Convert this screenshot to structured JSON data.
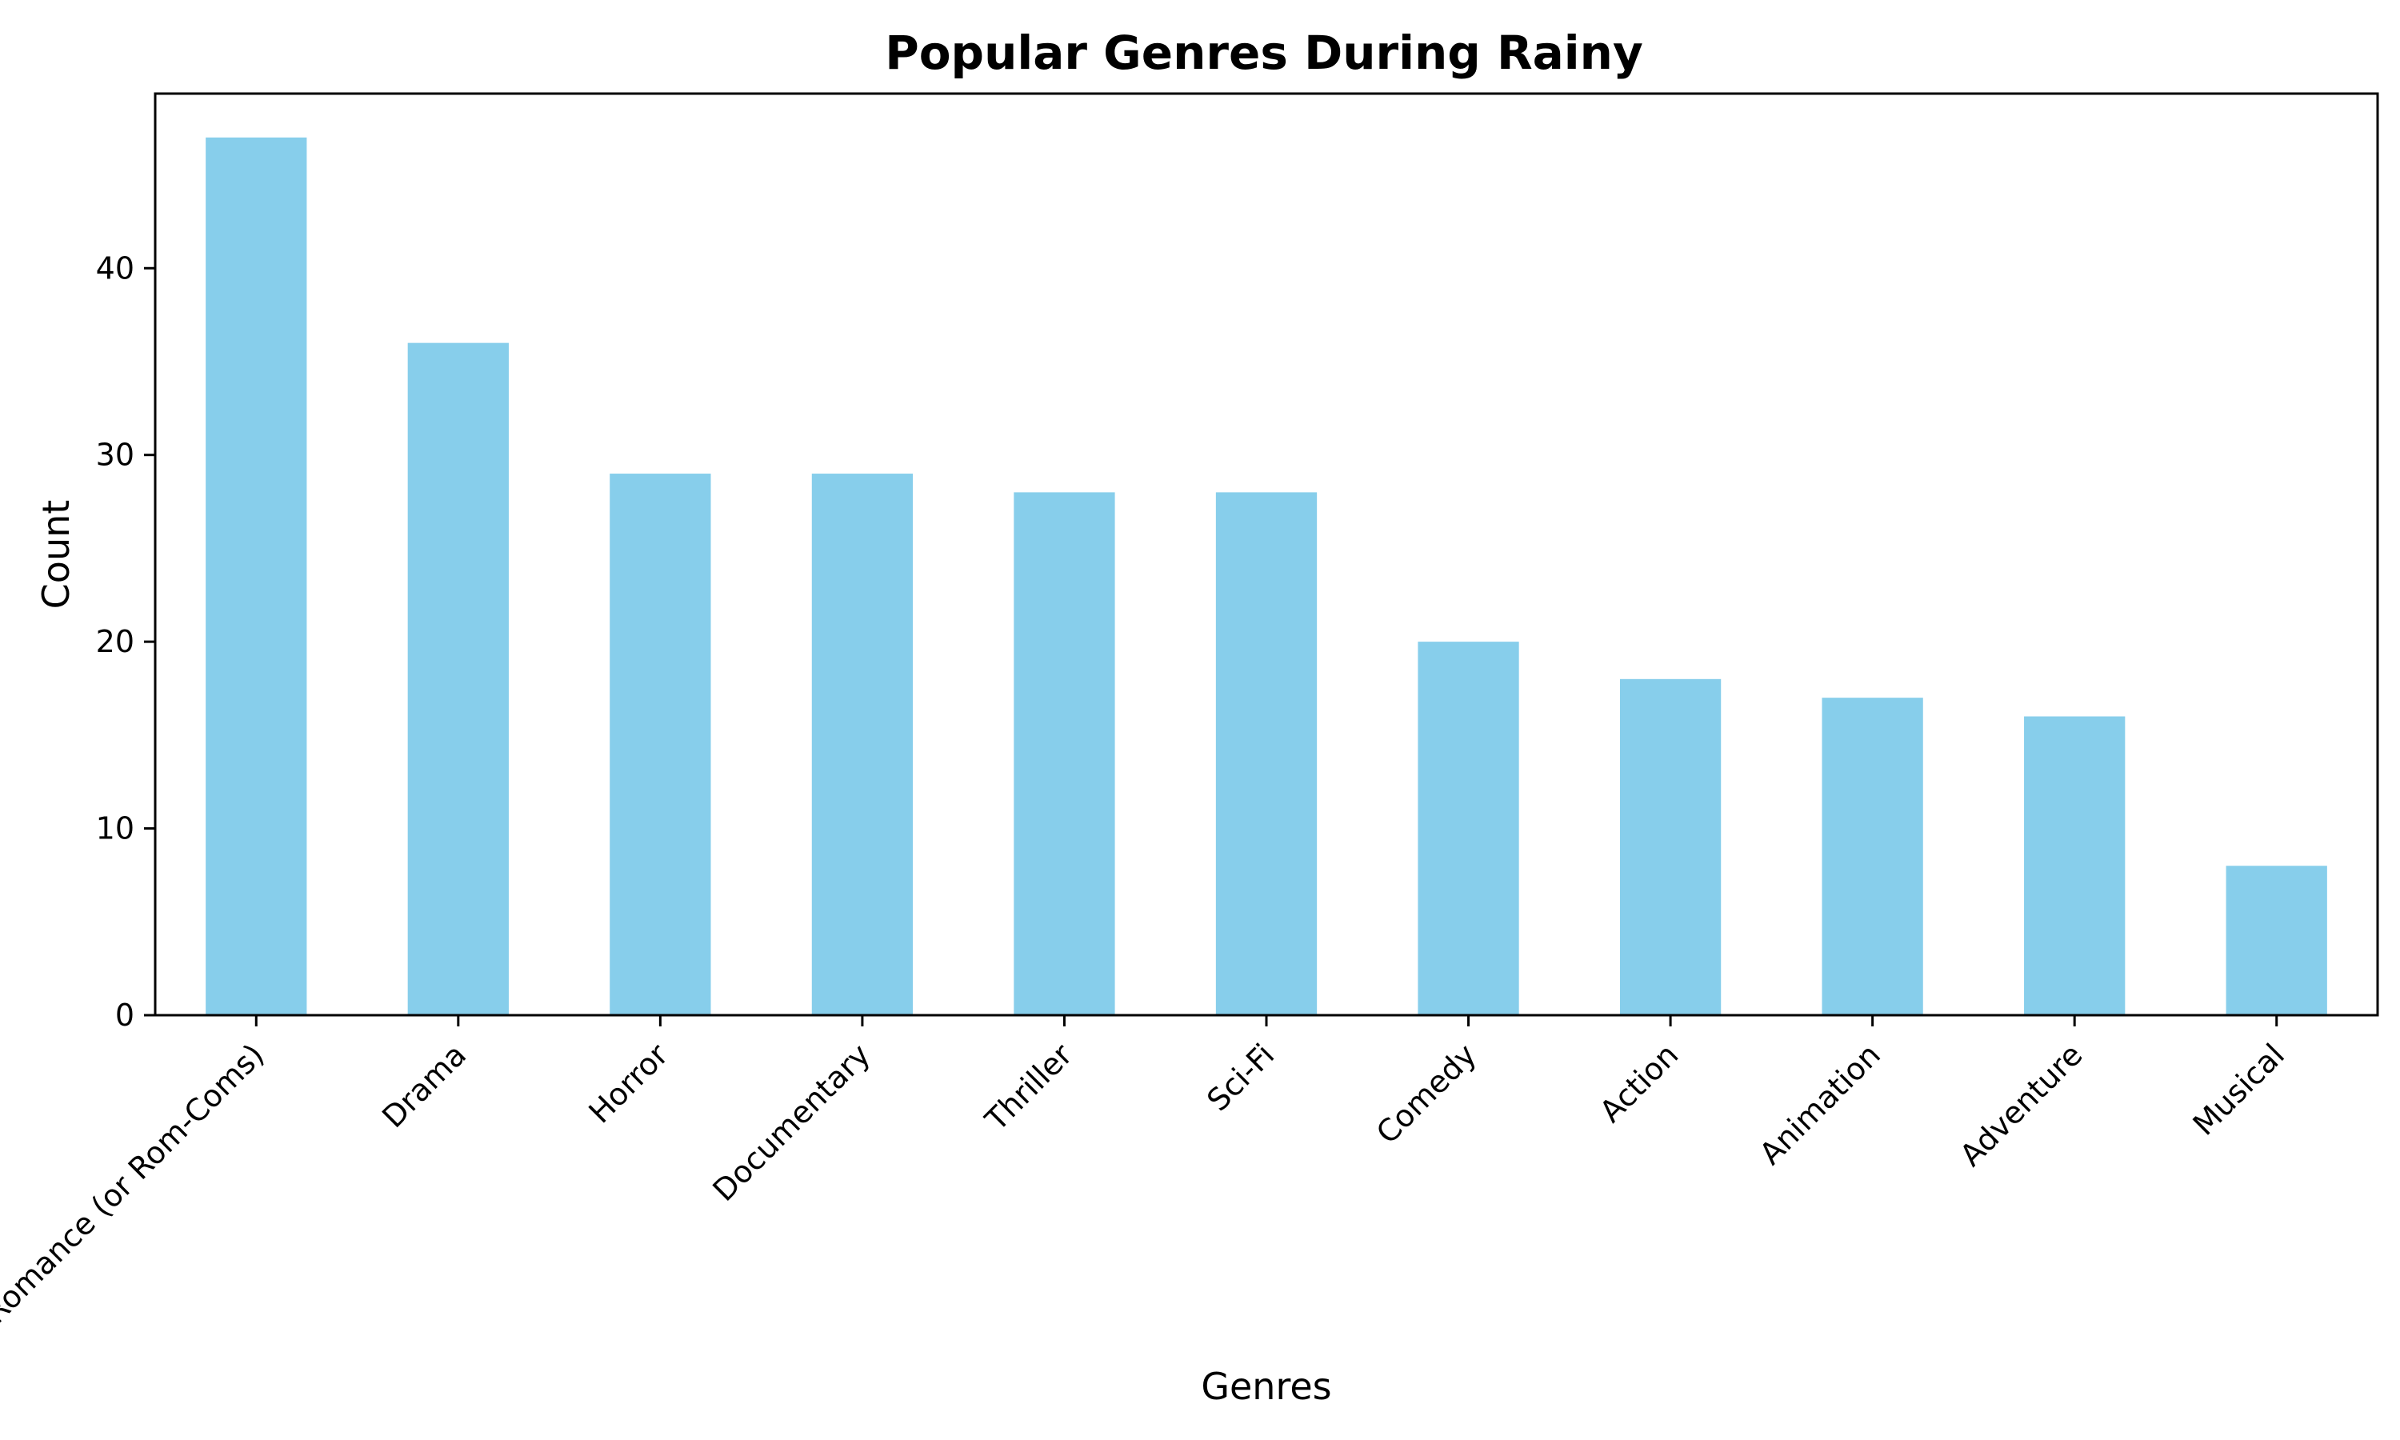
{
  "chart_data": {
    "type": "bar",
    "title": "Popular Genres During Rainy",
    "xlabel": "Genres",
    "ylabel": "Count",
    "categories": [
      "Romance (or Rom-Coms)",
      "Drama",
      "Horror",
      "Documentary",
      "Thriller",
      "Sci-Fi",
      "Comedy",
      "Action",
      "Animation",
      "Adventure",
      "Musical"
    ],
    "values": [
      47,
      36,
      29,
      29,
      28,
      28,
      20,
      18,
      17,
      16,
      8
    ],
    "ylim": [
      0,
      49.35
    ],
    "yticks": [
      0,
      10,
      20,
      30,
      40
    ],
    "grid": false,
    "legend": "none",
    "bar_color": "#87CEEB",
    "x_tick_rotation_deg": -45
  }
}
